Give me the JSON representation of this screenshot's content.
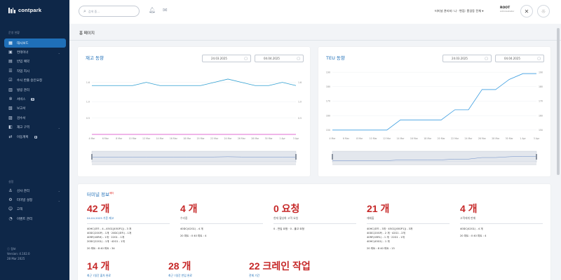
{
  "app": {
    "logo_text": "contpark"
  },
  "sidebar": {
    "section_main": "운영 현황",
    "items": [
      {
        "label": "대시보드",
        "icon": "grid-icon",
        "active": true
      },
      {
        "label": "컨테이너",
        "icon": "box-icon",
        "chevron": true
      },
      {
        "label": "반입 예약",
        "icon": "calendar-icon"
      },
      {
        "label": "작업 지시",
        "icon": "list-icon"
      },
      {
        "label": "수시 반출 승인요청",
        "icon": "check-icon"
      },
      {
        "label": "빌링 관리",
        "icon": "bill-icon"
      },
      {
        "label": "서비스",
        "icon": "service-icon",
        "badge": "β"
      },
      {
        "label": "보고서",
        "icon": "report-icon"
      },
      {
        "label": "검수서",
        "icon": "doc-icon"
      },
      {
        "label": "재고 구역",
        "icon": "zone-icon",
        "chevron": true
      },
      {
        "label": "이동계획",
        "icon": "route-icon",
        "badge": "β"
      }
    ],
    "section_settings": "설정",
    "settings_items": [
      {
        "label": "선사 관리",
        "icon": "ship-icon",
        "chevron": true
      },
      {
        "label": "터미널 설정",
        "icon": "settings-icon",
        "chevron": true
      },
      {
        "label": "고객",
        "icon": "users-icon"
      },
      {
        "label": "이벤트 관리",
        "icon": "event-icon"
      }
    ],
    "footer_label": "정보",
    "version": "Version: 4.102.0",
    "date": "28 Mar 2025"
  },
  "header": {
    "search_placeholder": "검색 중...",
    "user_text": "터미널 관리자: 나 · 편집: 홍길동 전체 ▾",
    "root_label": "ROOT",
    "root_sub": "Administrator"
  },
  "page": {
    "title": "홈 페이지"
  },
  "inventory_chart": {
    "title": "재고 동향",
    "date_from": "24.03.2025",
    "date_to": "04.04.2025"
  },
  "teu_chart": {
    "title": "TEU 동향",
    "date_from": "24.03.2025",
    "date_to": "04.04.2025"
  },
  "chart_data": [
    {
      "type": "line",
      "title": "재고 동향",
      "x": [
        "4 Mar",
        "6 Mar",
        "8 Mar",
        "10 Mar",
        "12 Mar",
        "14 Mar",
        "16 Mar",
        "18 Mar",
        "20 Mar",
        "22 Mar",
        "24 Mar",
        "26 Mar",
        "28 Mar",
        "30 Mar",
        "1 Apr",
        "3 Apr"
      ],
      "series": [
        {
          "values": [
            1.5,
            1.5,
            1.5,
            1.5,
            1.6,
            1.5,
            1.5,
            1.5,
            1.5,
            1.6,
            1.7,
            1.6,
            1.5,
            1.5,
            1.6,
            1.5
          ],
          "color": "#2f9fd1"
        },
        {
          "values": [
            0.0,
            0.0,
            0.0,
            0.0,
            0.0,
            0.0,
            0.0,
            0.0,
            0.0,
            0.0,
            0.0,
            0.0,
            0.0,
            0.0,
            0.0,
            0.0
          ],
          "color": "#d63cc4"
        }
      ],
      "y_ticks_left": [
        "1.6",
        "1.0",
        "0.5"
      ],
      "y_ticks_right": [
        "1.6",
        "1.0",
        "0.5"
      ],
      "ylim": [
        0,
        2
      ]
    },
    {
      "type": "line",
      "title": "TEU 동향",
      "x": [
        "4 Mar",
        "6 Mar",
        "8 Mar",
        "10 Mar",
        "12 Mar",
        "14 Mar",
        "16 Mar",
        "18 Mar",
        "20 Mar",
        "22 Mar",
        "24 Mar",
        "26 Mar",
        "28 Mar",
        "30 Mar",
        "1 Apr",
        "3 Apr"
      ],
      "series": [
        {
          "values": [
            150,
            150,
            150,
            150,
            150,
            157,
            157,
            157,
            157,
            164,
            164,
            178,
            178,
            185,
            189,
            189
          ],
          "color": "#3b9de0"
        }
      ],
      "y_ticks_left": [
        "190",
        "180",
        "170",
        "160",
        "150"
      ],
      "y_ticks_right": [
        "190",
        "180",
        "170",
        "160",
        "150"
      ],
      "ylim": [
        147,
        192
      ]
    }
  ],
  "terminal": {
    "title": "터미널 정보",
    "title_tag": "베타",
    "stats": [
      {
        "big": "42 개",
        "sub": "04.04.2025 기준 재고",
        "sub_blue": true,
        "lines": [
          "40HC(코드 - 4…45G1[45GP1]) - 3 개",
          "40DC(20GP) - 1개 · 20DC(코드) - 1개",
          "40RF(40RH) - 1개 · 22G1 - 1개",
          "20DC(22G1) - 1개 · 42G1 - 1개"
        ],
        "footer": "20 피트 : 8  40 피트 : 34"
      },
      {
        "big": "4 개",
        "sub": "수리중",
        "sub_blue": false,
        "lines": [
          "40DC(42G1) - 4 개"
        ],
        "footer": "20 피트 : 0  40 피트 : 4"
      },
      {
        "big": "0 요청",
        "sub": "현재 활성화 고객 요청",
        "sub_blue": false,
        "lines": [
          "0 - 반입 요청 · 0 - 출고 요청"
        ],
        "footer": ""
      },
      {
        "big": "21 개",
        "sub": "재배출",
        "sub_blue": false,
        "lines": [
          "40HC(코드 - 3개 · 45G1[45GP1]) - 3개",
          "40DC(20GP) - 2 개 · 42G1 - 2개",
          "40RF(45R1) - 1 개 · 22G1 - 1개",
          "40HC(45G1) - 1 개"
        ],
        "footer": "20 피트 : 8  40 피트 : 13"
      },
      {
        "big": "4 개",
        "sub": "고객에게 판매",
        "sub_blue": false,
        "lines": [
          "40DC(42G1) - 4 개"
        ],
        "footer": "20 피트 : 0  40 피트 : 4"
      }
    ],
    "stats_row2": [
      {
        "big": "14 개",
        "sub": "최근 7일간 출차 완료"
      },
      {
        "big": "28 개",
        "sub": "최근 7일간 반입 완료"
      },
      {
        "big": "22 크레인 작업",
        "sub": "전체 기간"
      }
    ]
  },
  "colors": {
    "sidebar_bg": "#0e2748",
    "accent": "#1f6fb8",
    "stat_red": "#c62828",
    "line_blue": "#2f9fd1",
    "line_pink": "#d63cc4"
  }
}
